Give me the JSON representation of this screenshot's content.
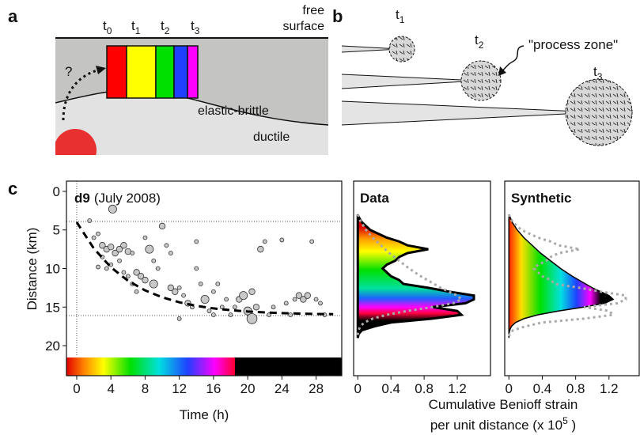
{
  "panel_a": {
    "letter": "a",
    "times": [
      {
        "base": "t",
        "sub": "0"
      },
      {
        "base": "t",
        "sub": "1"
      },
      {
        "base": "t",
        "sub": "2"
      },
      {
        "base": "t",
        "sub": "3"
      }
    ],
    "free_surface": [
      "free",
      "surface"
    ],
    "question": "?",
    "layer_upper": "elastic-brittle",
    "layer_lower": "ductile"
  },
  "panel_b": {
    "letter": "b",
    "times": [
      {
        "base": "t",
        "sub": "1"
      },
      {
        "base": "t",
        "sub": "2"
      },
      {
        "base": "t",
        "sub": "3"
      }
    ],
    "process_zone": "\"process zone\""
  },
  "panel_c": {
    "letter": "c",
    "strain_label": {
      "line1": "Cumulative Benioff strain",
      "line2": "per unit distance (x 10",
      "sup": "5",
      "end": " )"
    }
  },
  "chart_data": [
    {
      "type": "scatter",
      "title_bold": "d9",
      "title": "(July 2008)",
      "x_label": "Time (h)",
      "y_label": "Distance (km)",
      "x": [
        1.5,
        2,
        2.5,
        3,
        3.5,
        4,
        4.2,
        4.5,
        5,
        5.5,
        6,
        6.5,
        5,
        4,
        3,
        2.5,
        3.5,
        5.5,
        6,
        6.5,
        7,
        7.5,
        8,
        8.5,
        8,
        9,
        9.5,
        10,
        10.5,
        11,
        11.5,
        12,
        12.5,
        13,
        13.5,
        14,
        14.5,
        15,
        15.5,
        16,
        16.5,
        17,
        17.5,
        18,
        18.5,
        19,
        19.5,
        20,
        20.5,
        21,
        20.5,
        21.5,
        22,
        22.5,
        23,
        24,
        24.5,
        25,
        25.5,
        26,
        26.5,
        27,
        27.5,
        28,
        28.5,
        29,
        9,
        11,
        7,
        16,
        12,
        14
      ],
      "y": [
        3.8,
        6,
        5.5,
        7,
        7.5,
        7.2,
        2.3,
        8,
        7.5,
        7,
        7.8,
        8,
        9,
        9.5,
        8.5,
        9.8,
        10,
        10.5,
        11,
        12,
        10.5,
        11,
        11.5,
        7.5,
        6,
        9,
        10,
        4.5,
        7,
        8,
        13,
        12.5,
        13.5,
        14.5,
        15,
        10,
        12,
        14,
        15.5,
        13,
        12,
        15,
        14,
        16,
        15,
        14,
        13.5,
        15.5,
        16.5,
        15,
        13,
        7.5,
        6.5,
        16,
        15,
        6.3,
        14.5,
        16,
        14,
        13.5,
        14,
        13.5,
        6.5,
        14,
        14.5,
        16,
        12,
        12.5,
        13,
        16,
        16.5,
        6.5
      ],
      "sizes": [
        1,
        1,
        1,
        2,
        2,
        2,
        3,
        2,
        2,
        2,
        2,
        1,
        1,
        1,
        1,
        1,
        1,
        1,
        1,
        1,
        2,
        2,
        2,
        3,
        1,
        1,
        1,
        2,
        1,
        1,
        2,
        1,
        1,
        2,
        1,
        1,
        1,
        3,
        1,
        1,
        1,
        1,
        1,
        1,
        1,
        2,
        3,
        3,
        4,
        2,
        2,
        2,
        1,
        1,
        1,
        1,
        1,
        1,
        1,
        2,
        2,
        2,
        1,
        1,
        1,
        1,
        3,
        2,
        1,
        1,
        1,
        1
      ],
      "color": "#c8c8c8",
      "xlim": [
        -1.2,
        31
      ],
      "ylim": [
        -1.33,
        21.33
      ],
      "xticks": [
        0,
        4,
        8,
        12,
        16,
        20,
        24,
        28
      ],
      "yticks": [
        0,
        5,
        10,
        15,
        20
      ],
      "y_inverted": true,
      "trend": {
        "x": [
          0,
          2,
          4,
          6,
          8,
          10,
          12,
          14,
          16,
          18,
          20,
          22,
          24,
          26,
          28,
          30
        ],
        "y": [
          4,
          7.4,
          9.84,
          11.59,
          12.84,
          13.73,
          14.38,
          14.84,
          15.17,
          15.4,
          15.57,
          15.69,
          15.78,
          15.84,
          15.89,
          15.92
        ]
      },
      "reference_lines": {
        "y": [
          3.9,
          16.1
        ],
        "x": [
          0
        ]
      }
    },
    {
      "type": "profile",
      "title": "Data",
      "depth": [
        3,
        3.5,
        4,
        4.5,
        5,
        5.5,
        6,
        6.5,
        7,
        7.5,
        8,
        8.5,
        9,
        9.5,
        10,
        10.5,
        11,
        11.5,
        12,
        12.5,
        13,
        13.5,
        14,
        14.5,
        15,
        15.5,
        16,
        16.5,
        17,
        17.5,
        18,
        18.5,
        19
      ],
      "values": [
        0,
        0.02,
        0.05,
        0.1,
        0.15,
        0.25,
        0.35,
        0.5,
        0.6,
        0.85,
        0.6,
        0.5,
        0.45,
        0.35,
        0.3,
        0.35,
        0.4,
        0.5,
        0.55,
        0.85,
        1.1,
        1.4,
        1.4,
        1.3,
        0.9,
        1.2,
        1.25,
        0.9,
        0.4,
        0.2,
        0.05,
        0.01,
        0
      ],
      "xlim": [
        -0.05,
        1.6
      ],
      "xticks": [
        0,
        0.4,
        0.8,
        1.2
      ],
      "ylim": [
        -1.33,
        21.33
      ]
    },
    {
      "type": "profile",
      "title": "Synthetic",
      "depth": [
        3,
        3.5,
        4,
        4.5,
        5,
        5.5,
        6,
        6.5,
        7,
        7.5,
        8,
        8.5,
        9,
        9.5,
        10,
        10.5,
        11,
        11.5,
        12,
        12.5,
        13,
        13.5,
        14,
        14.5,
        15,
        15.5,
        16,
        16.5,
        17,
        17.5,
        18,
        18.5,
        19
      ],
      "values": [
        0,
        0.02,
        0.04,
        0.07,
        0.1,
        0.14,
        0.18,
        0.23,
        0.28,
        0.33,
        0.38,
        0.44,
        0.5,
        0.56,
        0.62,
        0.69,
        0.76,
        0.84,
        0.92,
        1,
        1.1,
        1.2,
        1.25,
        1.15,
        0.9,
        0.6,
        0.35,
        0.18,
        0.08,
        0.03,
        0.01,
        0,
        0
      ],
      "xlim": [
        -0.05,
        1.6
      ],
      "xticks": [
        0,
        0.4,
        0.8,
        1.2
      ],
      "ylim": [
        -1.33,
        21.33
      ]
    }
  ]
}
